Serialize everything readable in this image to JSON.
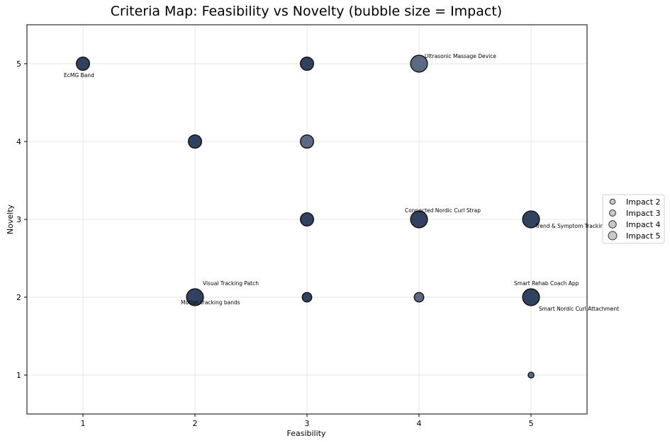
{
  "chart_data": {
    "type": "scatter",
    "title": "Criteria Map: Feasibility vs Novelty (bubble size = Impact)",
    "xlabel": "Feasibility",
    "ylabel": "Novelty",
    "xlim": [
      0.5,
      5.5
    ],
    "ylim": [
      0.5,
      5.5
    ],
    "xticks": [
      1,
      2,
      3,
      4,
      5
    ],
    "yticks": [
      1,
      2,
      3,
      4,
      5
    ],
    "grid": true,
    "colors": {
      "bubble_dark": "#1b2e4f",
      "bubble_light": "#4a5b78",
      "edge": "#111111",
      "legend_bubble": "#c8c8c8"
    },
    "points": [
      {
        "x": 1,
        "y": 5,
        "impact": 3,
        "shade": "dark"
      },
      {
        "x": 2,
        "y": 4,
        "impact": 3,
        "shade": "dark"
      },
      {
        "x": 2,
        "y": 2,
        "impact": 4,
        "shade": "dark"
      },
      {
        "x": 3,
        "y": 5,
        "impact": 3,
        "shade": "dark"
      },
      {
        "x": 3,
        "y": 4,
        "impact": 3,
        "shade": "light"
      },
      {
        "x": 3,
        "y": 3,
        "impact": 3,
        "shade": "dark"
      },
      {
        "x": 3,
        "y": 2,
        "impact": 2,
        "shade": "dark"
      },
      {
        "x": 4,
        "y": 5,
        "impact": 4,
        "shade": "light"
      },
      {
        "x": 4,
        "y": 3,
        "impact": 4,
        "shade": "dark"
      },
      {
        "x": 4,
        "y": 2,
        "impact": 2,
        "shade": "light"
      },
      {
        "x": 5,
        "y": 3,
        "impact": 4,
        "shade": "dark"
      },
      {
        "x": 5,
        "y": 2,
        "impact": 4,
        "shade": "dark"
      },
      {
        "x": 5,
        "y": 1,
        "impact": 1,
        "shade": "light"
      }
    ],
    "annotations": [
      {
        "text": "EcMG Band",
        "x": 1,
        "y": 5,
        "anchor": "below"
      },
      {
        "text": "Ultrasonic Massage Device",
        "x": 4,
        "y": 5,
        "anchor": "upper-right"
      },
      {
        "text": "Connected Nordic Curl Strap",
        "x": 4,
        "y": 3,
        "anchor": "above"
      },
      {
        "text": "Trend & Symptom Tracking",
        "x": 5,
        "y": 3,
        "anchor": "lower-right"
      },
      {
        "text": "Visual Tracking Patch",
        "x": 2,
        "y": 2,
        "anchor": "upper-right"
      },
      {
        "text": "Motion tracking bands",
        "x": 2,
        "y": 2,
        "anchor": "below"
      },
      {
        "text": "Smart Rehab Coach App",
        "x": 5,
        "y": 2,
        "anchor": "above"
      },
      {
        "text": "Smart Nordic Curl Attachment",
        "x": 5,
        "y": 2,
        "anchor": "lower-right"
      }
    ],
    "legend": {
      "placement": "right",
      "entries": [
        {
          "label": "Impact 2",
          "impact": 2
        },
        {
          "label": "Impact 3",
          "impact": 3
        },
        {
          "label": "Impact 4",
          "impact": 4
        },
        {
          "label": "Impact 5",
          "impact": 5
        }
      ]
    }
  }
}
